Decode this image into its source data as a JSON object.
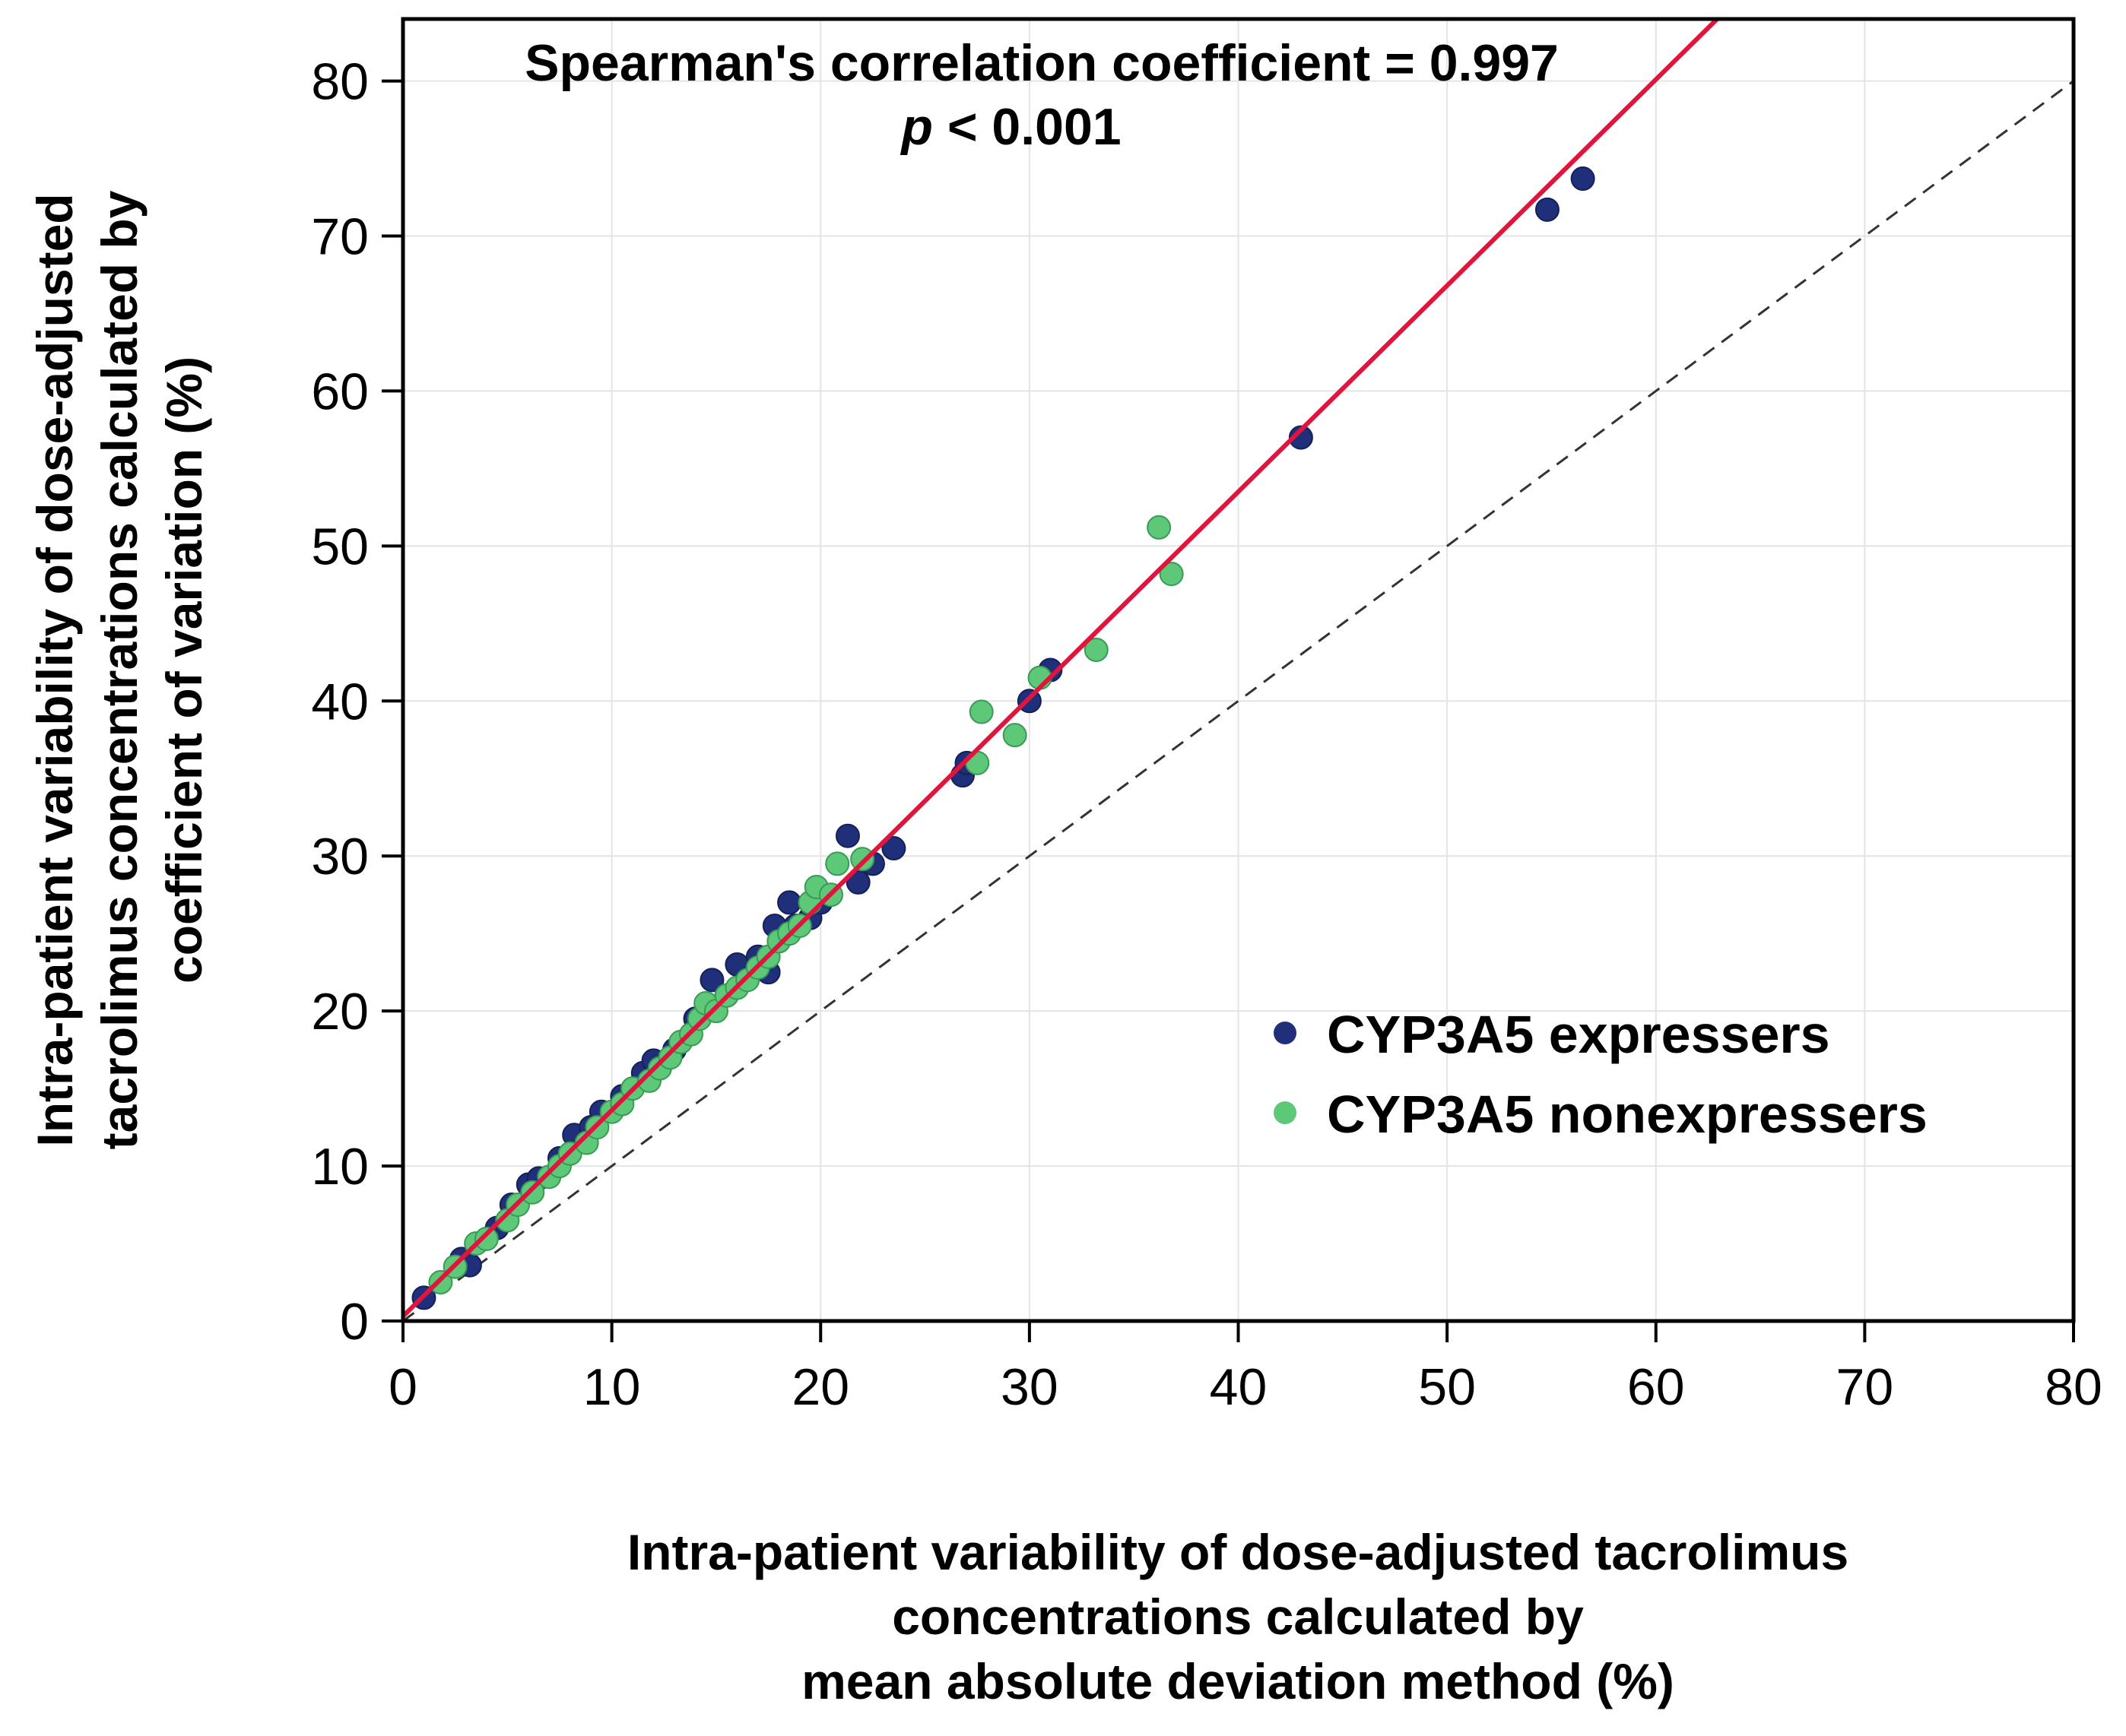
{
  "chart_data": {
    "type": "scatter",
    "title": "",
    "xlabel_lines": [
      "Intra-patient variability of dose-adjusted tacrolimus",
      "concentrations calculated by",
      "mean absolute deviation method (%)"
    ],
    "ylabel_lines": [
      "Intra-patient variability of dose-adjusted",
      "tacrolimus concentrations calculated by",
      "coefficient of variation (%)"
    ],
    "xlim": [
      0,
      80
    ],
    "ylim": [
      0,
      84
    ],
    "xticks": [
      0,
      10,
      20,
      30,
      40,
      50,
      60,
      70,
      80
    ],
    "yticks": [
      0,
      10,
      20,
      30,
      40,
      50,
      60,
      70,
      80
    ],
    "grid": true,
    "annotation": {
      "line1": "Spearman's correlation coefficient = 0.997",
      "p_symbol": "p",
      "p_rest": " < 0.001"
    },
    "legend_position": "bottom-right",
    "fit_line": {
      "name": "regression",
      "slope": 1.33,
      "intercept": 0.3,
      "color": "#e0143c"
    },
    "identity_line": {
      "name": "line of identity",
      "slope": 1,
      "intercept": 0,
      "style": "dashed",
      "color": "#333333"
    },
    "series": [
      {
        "name": "CYP3A5 expressers",
        "color": "#1f2f7a",
        "points": [
          [
            1.0,
            1.5
          ],
          [
            2.8,
            4.0
          ],
          [
            3.2,
            3.6
          ],
          [
            4.5,
            6.0
          ],
          [
            5.2,
            7.5
          ],
          [
            6.0,
            8.8
          ],
          [
            6.5,
            9.2
          ],
          [
            7.5,
            10.5
          ],
          [
            8.2,
            12.0
          ],
          [
            9.0,
            12.5
          ],
          [
            9.5,
            13.5
          ],
          [
            10.5,
            14.5
          ],
          [
            11.5,
            16.0
          ],
          [
            12.0,
            16.8
          ],
          [
            13.0,
            17.5
          ],
          [
            14.0,
            19.5
          ],
          [
            14.8,
            22.0
          ],
          [
            15.5,
            21.0
          ],
          [
            16.0,
            23.0
          ],
          [
            17.0,
            23.5
          ],
          [
            17.5,
            22.5
          ],
          [
            17.8,
            25.5
          ],
          [
            18.5,
            27.0
          ],
          [
            18.8,
            25.5
          ],
          [
            19.5,
            26.0
          ],
          [
            20.0,
            27.0
          ],
          [
            21.3,
            31.3
          ],
          [
            21.8,
            28.3
          ],
          [
            22.5,
            29.5
          ],
          [
            23.5,
            30.5
          ],
          [
            26.8,
            35.2
          ],
          [
            27.0,
            36.0
          ],
          [
            30.0,
            40.0
          ],
          [
            31.0,
            42.0
          ],
          [
            43.0,
            57.0
          ],
          [
            54.8,
            71.7
          ],
          [
            56.5,
            73.7
          ]
        ]
      },
      {
        "name": "CYP3A5 nonexpressers",
        "color": "#5cc878",
        "points": [
          [
            1.8,
            2.5
          ],
          [
            2.5,
            3.5
          ],
          [
            3.5,
            5.0
          ],
          [
            4.0,
            5.3
          ],
          [
            5.0,
            6.5
          ],
          [
            5.5,
            7.5
          ],
          [
            6.2,
            8.3
          ],
          [
            7.0,
            9.3
          ],
          [
            7.5,
            10.0
          ],
          [
            8.0,
            10.8
          ],
          [
            8.8,
            11.5
          ],
          [
            9.3,
            12.5
          ],
          [
            10.0,
            13.5
          ],
          [
            10.5,
            14.0
          ],
          [
            11.0,
            15.0
          ],
          [
            11.8,
            15.5
          ],
          [
            12.3,
            16.3
          ],
          [
            12.8,
            17.0
          ],
          [
            13.3,
            18.0
          ],
          [
            13.8,
            18.5
          ],
          [
            14.2,
            19.5
          ],
          [
            14.5,
            20.5
          ],
          [
            15.0,
            20.0
          ],
          [
            15.5,
            21.0
          ],
          [
            16.0,
            21.5
          ],
          [
            16.5,
            22.0
          ],
          [
            17.0,
            22.8
          ],
          [
            17.5,
            23.5
          ],
          [
            18.0,
            24.5
          ],
          [
            18.5,
            25.0
          ],
          [
            19.0,
            25.5
          ],
          [
            19.5,
            27.0
          ],
          [
            19.8,
            28.0
          ],
          [
            20.5,
            27.5
          ],
          [
            20.8,
            29.5
          ],
          [
            22.0,
            29.8
          ],
          [
            27.5,
            36.0
          ],
          [
            27.7,
            39.3
          ],
          [
            29.3,
            37.8
          ],
          [
            30.5,
            41.5
          ],
          [
            33.2,
            43.3
          ],
          [
            36.2,
            51.2
          ],
          [
            36.8,
            48.2
          ]
        ]
      }
    ]
  }
}
